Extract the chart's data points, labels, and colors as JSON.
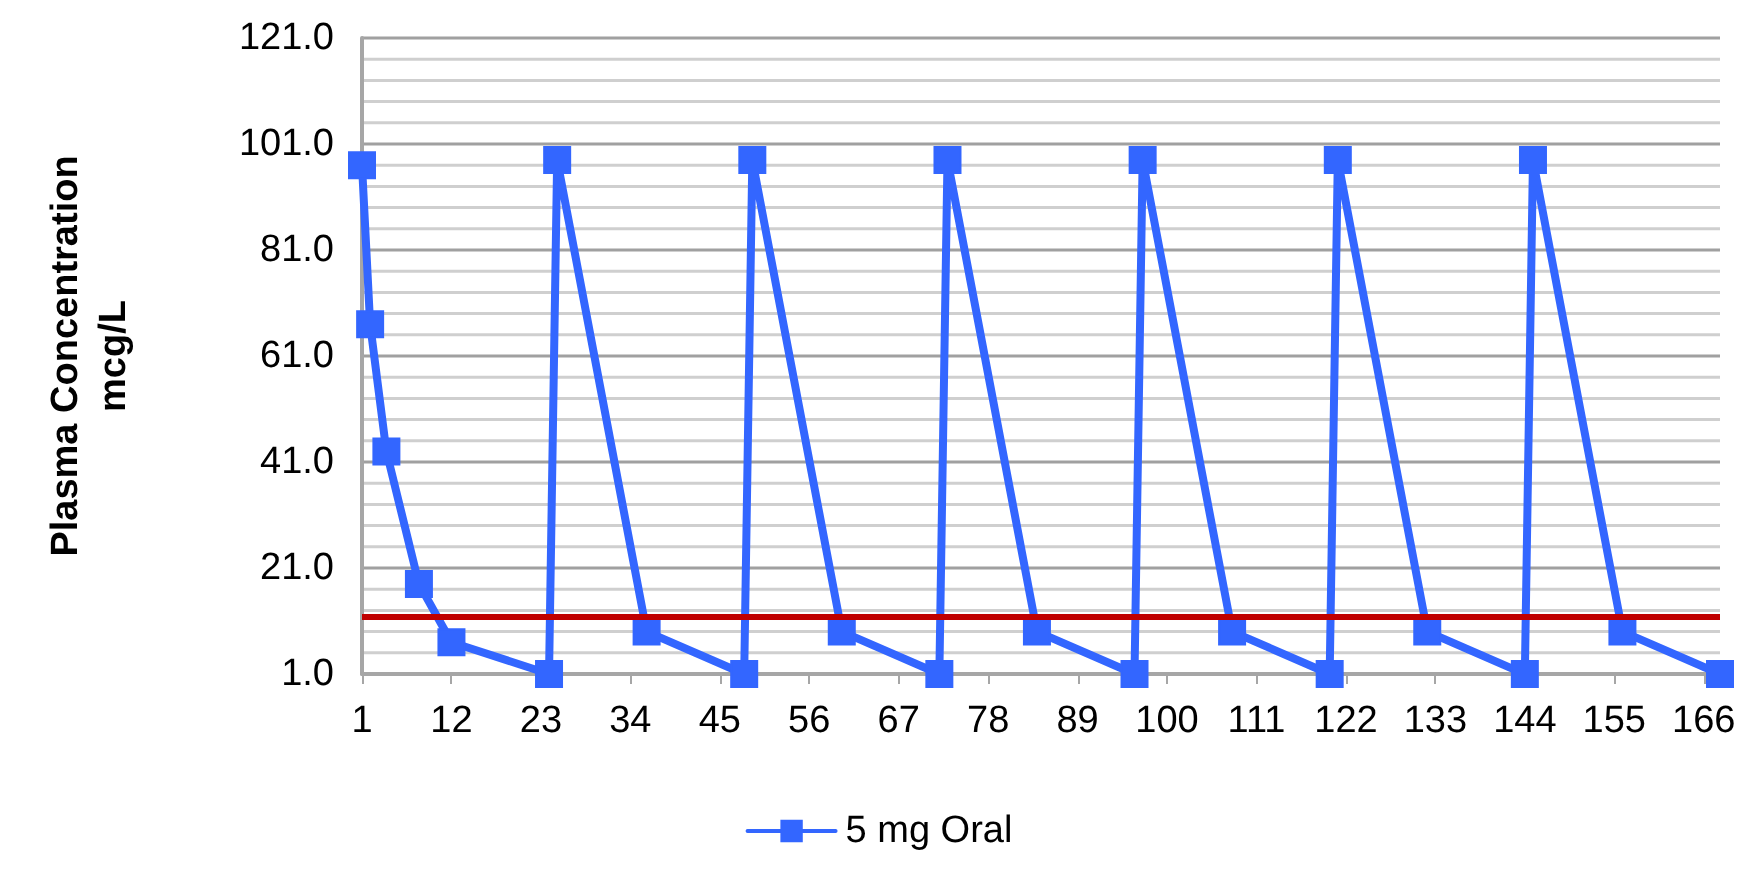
{
  "chart_data": {
    "type": "line",
    "ylabel": "Plasma Concentration\nmcg/L",
    "x": [
      1,
      2,
      4,
      8,
      12,
      24,
      25,
      36,
      48,
      49,
      60,
      72,
      73,
      84,
      96,
      97,
      108,
      120,
      121,
      132,
      144,
      145,
      156,
      168
    ],
    "series": [
      {
        "name": "5 mg Oral",
        "color": "#3366ff",
        "values": [
          97,
          67,
          43,
          18,
          7,
          1,
          98,
          9,
          1,
          98,
          9,
          1,
          98,
          9,
          1,
          98,
          9,
          1,
          98,
          9,
          1,
          98,
          9,
          1
        ]
      }
    ],
    "xlim": [
      1,
      168
    ],
    "xticks": [
      1,
      12,
      23,
      34,
      45,
      56,
      67,
      78,
      89,
      100,
      111,
      122,
      133,
      144,
      155,
      166
    ],
    "ylim": [
      1,
      121
    ],
    "yticks": [
      {
        "value": 1,
        "label": "1.0"
      },
      {
        "value": 5,
        "label": null
      },
      {
        "value": 9,
        "label": null
      },
      {
        "value": 13,
        "label": null
      },
      {
        "value": 17,
        "label": null
      },
      {
        "value": 21,
        "label": "21.0"
      },
      {
        "value": 25,
        "label": null
      },
      {
        "value": 29,
        "label": null
      },
      {
        "value": 33,
        "label": null
      },
      {
        "value": 37,
        "label": null
      },
      {
        "value": 41,
        "label": "41.0"
      },
      {
        "value": 45,
        "label": null
      },
      {
        "value": 49,
        "label": null
      },
      {
        "value": 53,
        "label": null
      },
      {
        "value": 57,
        "label": null
      },
      {
        "value": 61,
        "label": "61.0"
      },
      {
        "value": 65,
        "label": null
      },
      {
        "value": 69,
        "label": null
      },
      {
        "value": 73,
        "label": null
      },
      {
        "value": 77,
        "label": null
      },
      {
        "value": 81,
        "label": "81.0"
      },
      {
        "value": 85,
        "label": null
      },
      {
        "value": 89,
        "label": null
      },
      {
        "value": 93,
        "label": null
      },
      {
        "value": 97,
        "label": null
      },
      {
        "value": 101,
        "label": "101.0"
      },
      {
        "value": 105,
        "label": null
      },
      {
        "value": 109,
        "label": null
      },
      {
        "value": 113,
        "label": null
      },
      {
        "value": 117,
        "label": null
      },
      {
        "value": 121,
        "label": "121.0"
      }
    ],
    "ref_lines": [
      {
        "axis": "y",
        "value": 12,
        "color": "#c00000"
      }
    ],
    "grid": "y",
    "legend": "bottom",
    "marker": "square",
    "line_style": "solid"
  }
}
